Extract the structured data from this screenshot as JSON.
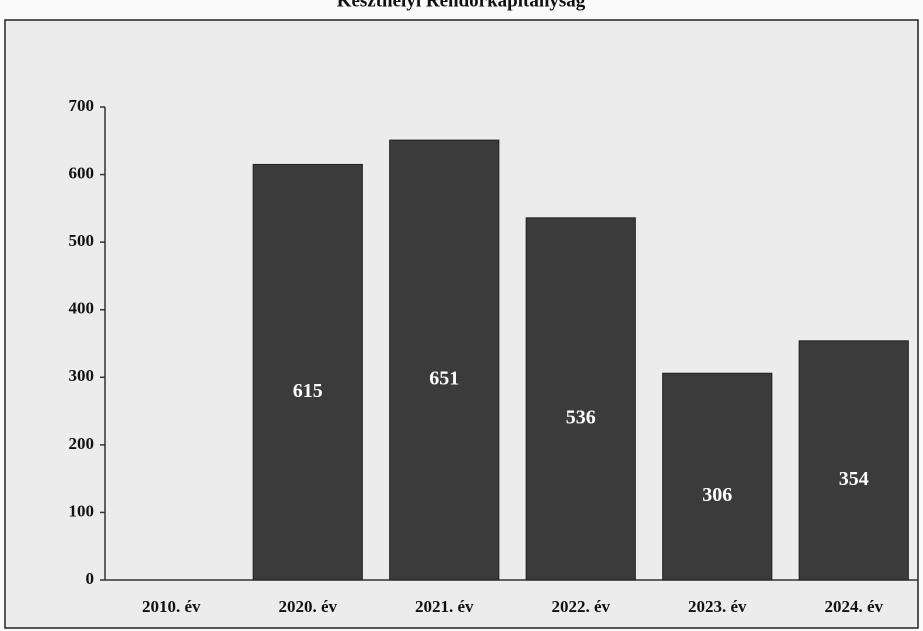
{
  "chart_data": {
    "type": "bar",
    "title": "Keszthelyi Rendőrkapitányság",
    "categories": [
      "2010. év",
      "2020. év",
      "2021. év",
      "2022. év",
      "2023. év",
      "2024. év"
    ],
    "values": [
      null,
      615,
      651,
      536,
      306,
      354
    ],
    "color": "#3b3b3b",
    "ylim": [
      0,
      700
    ],
    "yticks": [
      0,
      100,
      200,
      300,
      400,
      500,
      600,
      700
    ]
  }
}
